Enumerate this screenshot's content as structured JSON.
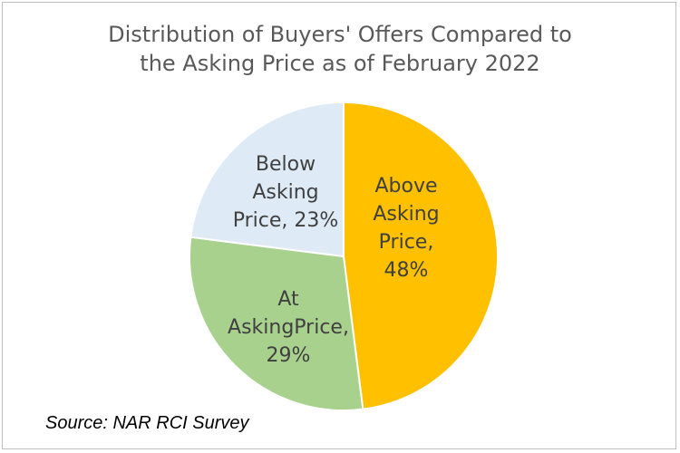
{
  "chart_data": {
    "type": "pie",
    "title": "Distribution of Buyers' Offers Compared to\nthe Asking Price as of February 2022",
    "slices": [
      {
        "label": "Above Asking Price",
        "value": 48,
        "display": [
          "Above",
          "Asking",
          "Price,",
          "48%"
        ],
        "color": "#FFC000"
      },
      {
        "label": "At AskingPrice",
        "value": 29,
        "display": [
          "At",
          "AskingPrice,",
          "29%"
        ],
        "color": "#A9D18E"
      },
      {
        "label": "Below Asking Price",
        "value": 23,
        "display": [
          "Below",
          "Asking",
          "Price, 23%"
        ],
        "color": "#DEEBF7"
      }
    ]
  },
  "source": "Source: NAR RCI Survey"
}
